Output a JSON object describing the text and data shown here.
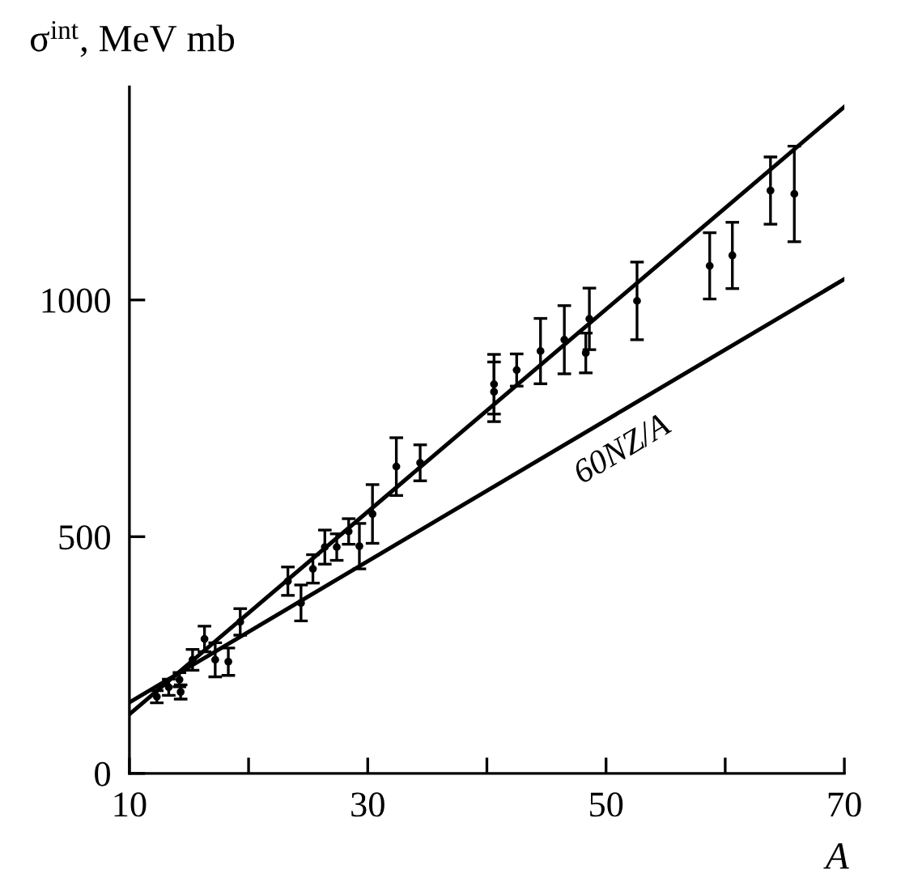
{
  "chart_data": {
    "type": "scatter",
    "xlabel": "A",
    "ylabel": "σ$^{int}$, MeV mb",
    "xlim": [
      10,
      70
    ],
    "ylim": [
      0,
      1450
    ],
    "xticks": [
      10,
      {
        "value": 20,
        "label": null
      },
      30,
      {
        "value": 40,
        "label": null
      },
      50,
      {
        "value": 60,
        "label": null
      },
      70
    ],
    "yticks": [
      0,
      500,
      1000
    ],
    "grid": false,
    "legend": false,
    "marker": "circle",
    "series": [
      {
        "color": "#000000",
        "x": [
          12.3,
          13.3,
          14.2,
          14.3,
          15.3,
          16.3,
          17.2,
          18.3,
          19.3,
          23.3,
          24.4,
          25.4,
          26.4,
          27.4,
          28.4,
          29.3,
          30.4,
          32.4,
          34.4,
          40.6,
          40.6,
          42.5,
          44.5,
          46.5,
          48.3,
          48.6,
          52.6,
          58.7,
          60.6,
          63.8,
          65.8
        ],
        "values": [
          162,
          182,
          198,
          172,
          240,
          284,
          240,
          236,
          320,
          406,
          360,
          432,
          478,
          478,
          511,
          480,
          548,
          648,
          656,
          822,
          806,
          852,
          892,
          916,
          888,
          960,
          998,
          1072,
          1094,
          1231,
          1224
        ],
        "errors": [
          13,
          17,
          15,
          15,
          22,
          27,
          36,
          29,
          28,
          30,
          38,
          30,
          36,
          28,
          27,
          48,
          62,
          61,
          38,
          63,
          63,
          34,
          69,
          72,
          42,
          65,
          82,
          70,
          70,
          71,
          101
        ]
      },
      {
        "type": "line",
        "color": "#000000",
        "marker": "none",
        "x": [
          10,
          70
        ],
        "values": [
          125,
          1408
        ]
      },
      {
        "type": "line",
        "name": "60NZ/A",
        "color": "#000000",
        "marker": "none",
        "x": [
          10,
          70
        ],
        "values": [
          150,
          1044
        ]
      }
    ]
  }
}
